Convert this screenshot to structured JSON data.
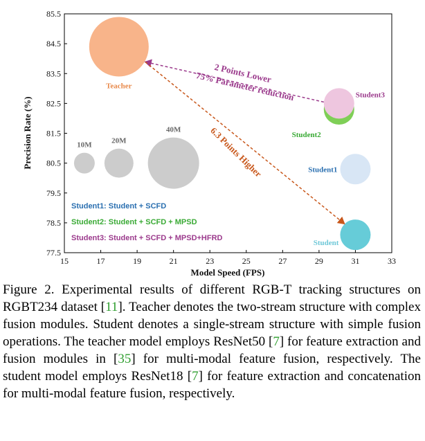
{
  "chart_data": {
    "type": "scatter",
    "xlabel": "Model Speed (FPS)",
    "ylabel": "Precision Rate (%)",
    "xlim": [
      15,
      33
    ],
    "ylim": [
      77.5,
      85.5
    ],
    "xticks": [
      "15",
      "17",
      "19",
      "21",
      "23",
      "25",
      "27",
      "29",
      "31",
      "33"
    ],
    "yticks": [
      "77.5",
      "78.5",
      "79.5",
      "80.5",
      "81.5",
      "82.5",
      "83.5",
      "84.5",
      "85.5"
    ],
    "grid": false,
    "points": [
      {
        "name": "Teacher",
        "x": 18.0,
        "y": 84.4,
        "color": "#f8b48a",
        "label_color": "#e8894a"
      },
      {
        "name": "Student3",
        "x": 30.1,
        "y": 82.5,
        "color": "#eec6df",
        "label_color": "#9b3a8c"
      },
      {
        "name": "Student2",
        "x": 30.1,
        "y": 82.3,
        "color": "#7fcf57",
        "label_color": "#3aaa35"
      },
      {
        "name": "Student1",
        "x": 31.0,
        "y": 80.3,
        "color": "#d8e6f5",
        "label_color": "#2a6fb0"
      },
      {
        "name": "Student",
        "x": 31.0,
        "y": 78.1,
        "color": "#66ccd8",
        "label_color": "#6fc8d8"
      }
    ],
    "size_reference": [
      {
        "label": "10M",
        "x": 16.1,
        "y": 80.5
      },
      {
        "label": "20M",
        "x": 18.0,
        "y": 80.5
      },
      {
        "label": "40M",
        "x": 21.0,
        "y": 80.5
      }
    ],
    "legend_position": "bottom-left",
    "legend": [
      {
        "text": "Student1: Student + SCFD",
        "color": "#2a6fb0"
      },
      {
        "text": "Student2: Student + SCFD + MPSD",
        "color": "#3aaa35"
      },
      {
        "text": "Student3: Student + SCFD + MPSD+HFRD",
        "color": "#9b3a8c"
      }
    ],
    "annotations": [
      {
        "lines": [
          "2 Points Lower",
          "75% Parameter reduction"
        ],
        "color": "#9b3a8c"
      },
      {
        "lines": [
          "6.3 Points Higher"
        ],
        "color": "#c8571b"
      }
    ]
  },
  "caption": {
    "segments": [
      {
        "text": "Figure 2. Experimental results of different RGB-T tracking structures on RGBT234 dataset [",
        "ref": false
      },
      {
        "text": "11",
        "ref": true
      },
      {
        "text": "]. Teacher denotes the two-stream structure with complex fusion modules. Student denotes a single-stream structure with simple fusion operations. The teacher model employs ResNet50 [",
        "ref": false
      },
      {
        "text": "7",
        "ref": true
      },
      {
        "text": "] for feature extraction and fusion modules in [",
        "ref": false
      },
      {
        "text": "35",
        "ref": true
      },
      {
        "text": "] for multi-modal feature fusion, respectively. The student model employs ResNet18 [",
        "ref": false
      },
      {
        "text": "7",
        "ref": true
      },
      {
        "text": "] for feature extraction and concatenation for multi-modal feature fusion, respectively.",
        "ref": false
      }
    ]
  }
}
